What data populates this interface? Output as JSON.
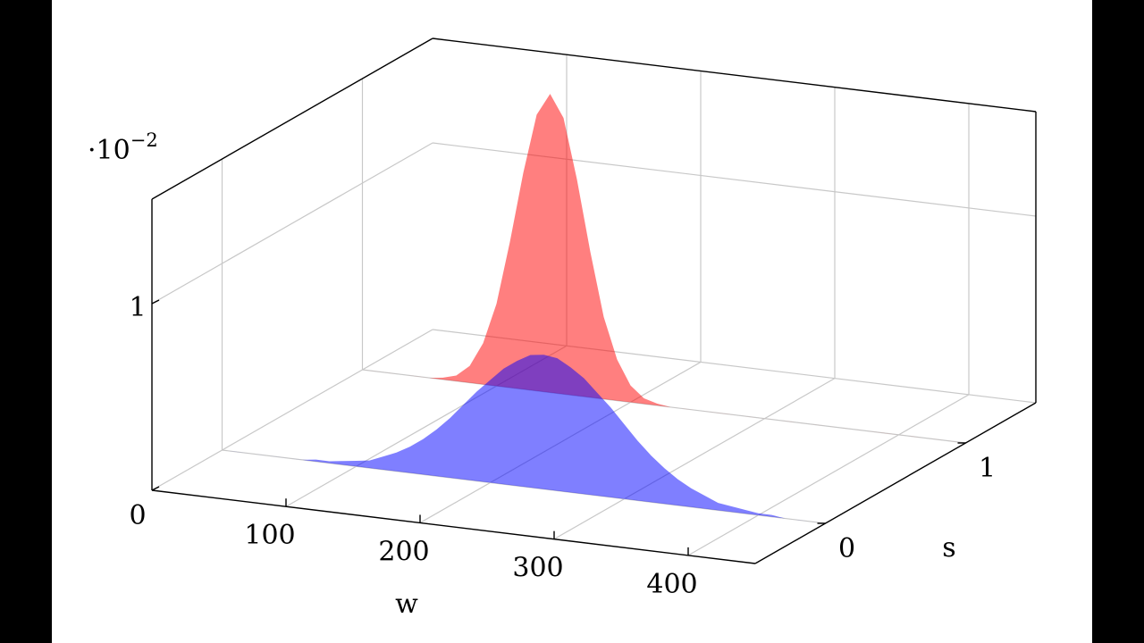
{
  "chart_data": {
    "type": "area3d",
    "x_label": "w",
    "y_label": "s",
    "z_multiplier_base": "·10",
    "z_multiplier_exponent": "−2",
    "x": [
      0,
      10,
      20,
      30,
      40,
      50,
      60,
      70,
      80,
      90,
      100,
      110,
      120,
      130,
      140,
      150,
      160,
      170,
      180,
      190,
      200,
      210,
      220,
      230,
      240,
      250,
      260,
      270,
      280,
      290,
      300,
      310,
      320,
      330,
      340,
      350,
      360,
      370,
      380,
      390,
      400,
      410,
      420,
      430,
      440,
      450
    ],
    "series": [
      {
        "s": 1,
        "color": "#ff0000",
        "values": [
          0,
          0,
          0,
          0,
          0,
          0,
          0.01,
          0.03,
          0.09,
          0.22,
          0.44,
          0.78,
          1.16,
          1.48,
          1.6,
          1.48,
          1.16,
          0.78,
          0.44,
          0.22,
          0.09,
          0.03,
          0.01,
          0,
          0,
          0,
          0,
          0,
          0,
          0,
          0,
          0,
          0,
          0,
          0,
          0,
          0,
          0,
          0,
          0,
          0,
          0,
          0,
          0,
          0,
          0
        ]
      },
      {
        "s": 0,
        "color": "#0000ff",
        "values": [
          0,
          0,
          0,
          0,
          0,
          0,
          0,
          0.01,
          0.01,
          0.02,
          0.03,
          0.04,
          0.07,
          0.1,
          0.14,
          0.19,
          0.25,
          0.32,
          0.4,
          0.48,
          0.55,
          0.62,
          0.67,
          0.71,
          0.72,
          0.71,
          0.67,
          0.62,
          0.55,
          0.48,
          0.4,
          0.32,
          0.25,
          0.19,
          0.14,
          0.1,
          0.07,
          0.04,
          0.03,
          0.02,
          0.01,
          0.01,
          0,
          0,
          0,
          0
        ]
      }
    ],
    "fill_opacity": 0.5,
    "xlim": [
      0,
      450
    ],
    "xticks": [
      100,
      200,
      300,
      400
    ],
    "ylim": [
      -0.5,
      1.5
    ],
    "yticks": [
      0,
      1
    ],
    "zlim": [
      0,
      1.56
    ],
    "zticks": [
      0,
      1
    ],
    "grid": true
  }
}
